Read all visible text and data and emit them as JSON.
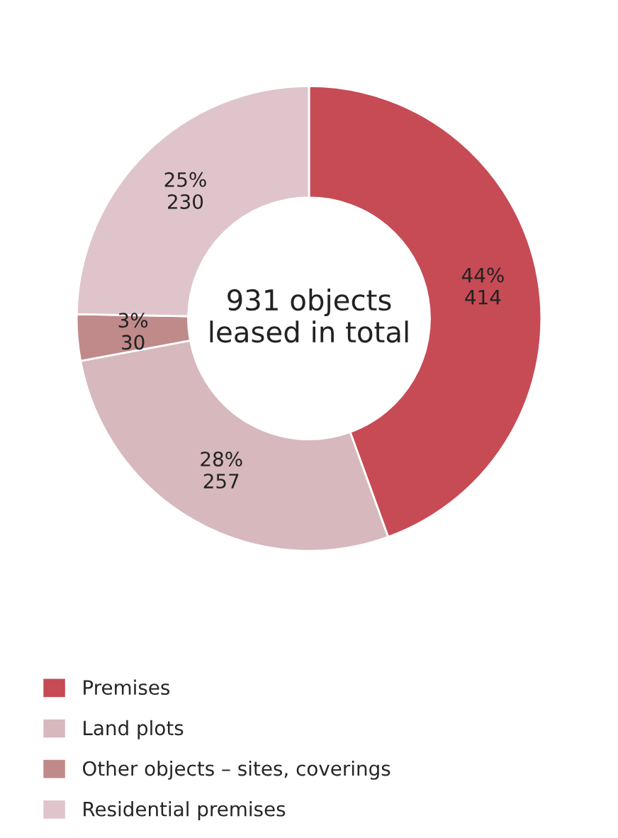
{
  "chart_data": {
    "type": "donut",
    "categories": [
      "Premises",
      "Land plots",
      "Other objects – sites, coverings",
      "Residential premises"
    ],
    "values": [
      414,
      257,
      30,
      230
    ],
    "colors": [
      "#c64b55",
      "#d6b8bd",
      "#c08a8a",
      "#dfc5cb"
    ],
    "value_labels": [
      "44%\n414",
      "28%\n257",
      "3%\n30",
      "25%\n230"
    ],
    "annotations": [
      "931 objects\nleased in total"
    ],
    "legend": "bottom"
  }
}
